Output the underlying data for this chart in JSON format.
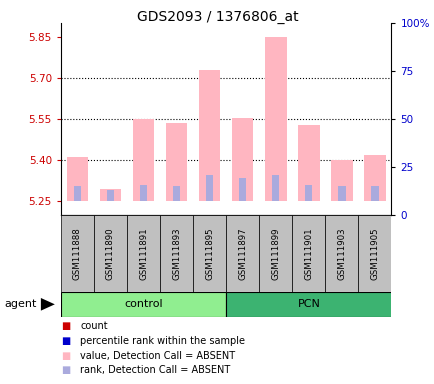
{
  "title": "GDS2093 / 1376806_at",
  "samples": [
    "GSM111888",
    "GSM111890",
    "GSM111891",
    "GSM111893",
    "GSM111895",
    "GSM111897",
    "GSM111899",
    "GSM111901",
    "GSM111903",
    "GSM111905"
  ],
  "ylim_left": [
    5.2,
    5.9
  ],
  "ylim_right": [
    0,
    100
  ],
  "yticks_left": [
    5.25,
    5.4,
    5.55,
    5.7,
    5.85
  ],
  "yticks_right": [
    0,
    25,
    50,
    75,
    100
  ],
  "ytick_labels_right": [
    "0",
    "25",
    "50",
    "75",
    "100%"
  ],
  "pink_bar_values": [
    5.41,
    5.295,
    5.55,
    5.535,
    5.73,
    5.555,
    5.85,
    5.53,
    5.4,
    5.42
  ],
  "blue_bar_values": [
    5.305,
    5.29,
    5.31,
    5.305,
    5.345,
    5.335,
    5.345,
    5.31,
    5.305,
    5.305
  ],
  "bar_bottom": 5.25,
  "pink_color": "#FFB6C1",
  "blue_color": "#AAAADD",
  "bar_width": 0.65,
  "blue_bar_width": 0.22,
  "left_label_color": "#CC0000",
  "right_label_color": "#0000CC",
  "legend_items": [
    {
      "color": "#CC0000",
      "label": "count"
    },
    {
      "color": "#0000CC",
      "label": "percentile rank within the sample"
    },
    {
      "color": "#FFB6C1",
      "label": "value, Detection Call = ABSENT"
    },
    {
      "color": "#AAAADD",
      "label": "rank, Detection Call = ABSENT"
    }
  ],
  "agent_label": "agent",
  "control_label": "control",
  "pcn_label": "PCN",
  "light_green": "#90EE90",
  "dark_green": "#3CB371",
  "sample_box_color": "#C0C0C0"
}
